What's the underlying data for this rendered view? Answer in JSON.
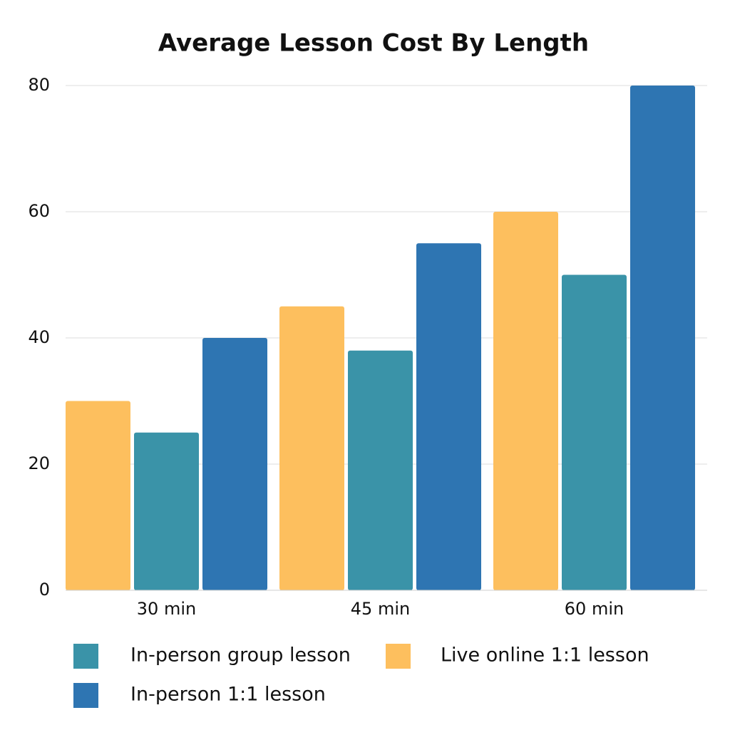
{
  "chart_data": {
    "type": "bar",
    "title": "Average Lesson Cost By Length",
    "categories": [
      "30 min",
      "45 min",
      "60 min"
    ],
    "series": [
      {
        "name": "Live online 1:1 lesson",
        "color": "#fdbf5e",
        "values": [
          30,
          45,
          60
        ]
      },
      {
        "name": "In-person group lesson",
        "color": "#3a93a8",
        "values": [
          25,
          38,
          50
        ]
      },
      {
        "name": "In-person 1:1 lesson",
        "color": "#2e75b2",
        "values": [
          40,
          55,
          80
        ]
      }
    ],
    "ylim": [
      0,
      80
    ],
    "yticks": [
      0,
      20,
      40,
      60,
      80
    ],
    "grid": true
  }
}
